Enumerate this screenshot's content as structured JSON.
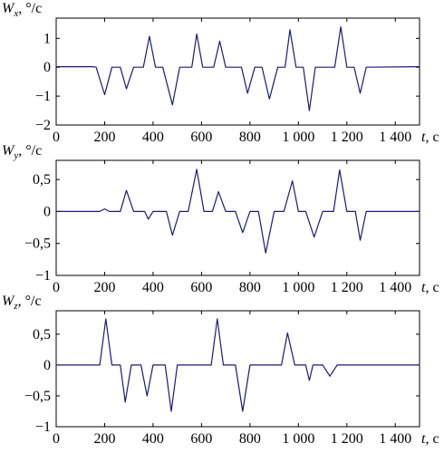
{
  "chart_data": [
    {
      "type": "line",
      "ylabel": {
        "var": "W",
        "sub": "x",
        "unit": ", °/c"
      },
      "xlabel": {
        "var": "t",
        "unit": ", c"
      },
      "xlim": [
        0,
        1500
      ],
      "ylim": [
        -2,
        1.7
      ],
      "xticks": [
        0,
        200,
        400,
        600,
        800,
        1000,
        1200,
        1400
      ],
      "xtick_labels": [
        "0",
        "200",
        "400",
        "600",
        "800",
        "1 000",
        "1 200",
        "1 400"
      ],
      "yticks": [
        1,
        0,
        -1,
        -2
      ],
      "ytick_labels": [
        "1",
        "0",
        "−1",
        "−2"
      ],
      "series": [
        {
          "color": "#1a1a7a",
          "x": [
            0,
            150,
            165,
            200,
            230,
            265,
            290,
            320,
            360,
            385,
            410,
            440,
            480,
            510,
            540,
            560,
            580,
            605,
            630,
            650,
            675,
            700,
            740,
            765,
            790,
            820,
            850,
            880,
            915,
            945,
            965,
            990,
            1020,
            1045,
            1070,
            1090,
            1120,
            1150,
            1175,
            1200,
            1230,
            1255,
            1280,
            1500
          ],
          "y": [
            0.02,
            0.02,
            0.0,
            -0.95,
            0.0,
            0.0,
            -0.75,
            0.0,
            0.0,
            1.07,
            0.0,
            0.0,
            -1.3,
            0.0,
            0.0,
            0.0,
            1.15,
            0.0,
            0.0,
            0.0,
            0.9,
            0.0,
            0.0,
            0.0,
            -0.9,
            0.0,
            0.0,
            -1.1,
            0.0,
            0.0,
            1.3,
            0.0,
            0.0,
            -1.5,
            0.0,
            0.0,
            0.0,
            0.0,
            1.4,
            0.0,
            0.0,
            -0.9,
            0.0,
            0.02
          ]
        }
      ]
    },
    {
      "type": "line",
      "ylabel": {
        "var": "W",
        "sub": "y",
        "unit": ", °/c"
      },
      "xlabel": {
        "var": "t",
        "unit": ", c"
      },
      "xlim": [
        0,
        1500
      ],
      "ylim": [
        -1,
        0.8
      ],
      "xticks": [
        0,
        200,
        400,
        600,
        800,
        1000,
        1200,
        1400
      ],
      "xtick_labels": [
        "0",
        "200",
        "400",
        "600",
        "800",
        "1 000",
        "1 200",
        "1 400"
      ],
      "yticks": [
        0.5,
        0,
        -0.5,
        -1
      ],
      "ytick_labels": [
        "0,5",
        "0",
        "−0,5",
        "−1"
      ],
      "series": [
        {
          "color": "#1a1a7a",
          "x": [
            0,
            180,
            200,
            220,
            265,
            290,
            320,
            365,
            380,
            400,
            455,
            480,
            510,
            545,
            580,
            610,
            645,
            670,
            700,
            740,
            770,
            800,
            835,
            865,
            900,
            940,
            975,
            1000,
            1030,
            1065,
            1100,
            1145,
            1170,
            1200,
            1235,
            1255,
            1280,
            1500
          ],
          "y": [
            0.0,
            0.0,
            0.04,
            0.0,
            0.0,
            0.33,
            0.0,
            0.0,
            -0.12,
            0.0,
            0.0,
            -0.37,
            0.0,
            0.0,
            0.66,
            0.0,
            0.0,
            0.31,
            0.0,
            0.0,
            -0.33,
            0.0,
            0.0,
            -0.65,
            0.0,
            0.0,
            0.48,
            0.0,
            0.0,
            -0.4,
            0.0,
            0.0,
            0.65,
            0.0,
            0.0,
            -0.45,
            0.0,
            0.0
          ]
        }
      ]
    },
    {
      "type": "line",
      "ylabel": {
        "var": "W",
        "sub": "z",
        "unit": ", °/c"
      },
      "xlabel": {
        "var": "t",
        "unit": ", c"
      },
      "xlim": [
        0,
        1500
      ],
      "ylim": [
        -1,
        0.88
      ],
      "xticks": [
        0,
        200,
        400,
        600,
        800,
        1000,
        1200,
        1400
      ],
      "xtick_labels": [
        "0",
        "200",
        "400",
        "600",
        "800",
        "1 000",
        "1 200",
        "1 400"
      ],
      "yticks": [
        0.5,
        0,
        -0.5,
        -1
      ],
      "ytick_labels": [
        "0,5",
        "0",
        "−0,5",
        "−1"
      ],
      "series": [
        {
          "color": "#1a1a7a",
          "x": [
            0,
            180,
            205,
            230,
            265,
            285,
            310,
            350,
            375,
            400,
            450,
            475,
            500,
            640,
            665,
            690,
            740,
            770,
            800,
            930,
            955,
            985,
            1030,
            1045,
            1060,
            1100,
            1130,
            1160,
            1500
          ],
          "y": [
            0.0,
            0.0,
            0.75,
            0.0,
            0.0,
            -0.6,
            0.0,
            0.0,
            -0.5,
            0.0,
            0.0,
            -0.75,
            0.0,
            0.0,
            0.75,
            0.0,
            0.0,
            -0.75,
            0.0,
            0.0,
            0.52,
            0.0,
            0.0,
            -0.25,
            0.0,
            0.0,
            -0.18,
            0.0,
            0.0
          ]
        }
      ]
    }
  ]
}
